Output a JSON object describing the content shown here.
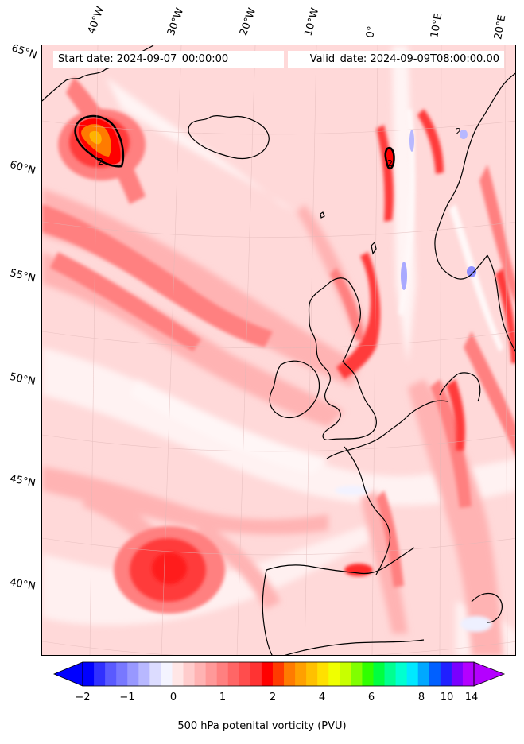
{
  "header": {
    "start_date": "Start date: 2024-09-07_00:00:00",
    "valid_date": "Valid_date: 2024-09-09T08:00:00.00"
  },
  "map": {
    "variable": "500 hPa potential vorticity",
    "longitude_labels": [
      "40°W",
      "30°W",
      "20°W",
      "10°W",
      "0°",
      "10°E",
      "20°E"
    ],
    "latitude_labels": [
      "65°N",
      "60°N",
      "55°N",
      "50°N",
      "45°N",
      "40°N"
    ],
    "contour_labels": [
      "2",
      "2",
      "2"
    ],
    "colors": {
      "background": "#ffd9d9",
      "light_pink": "#ffb3b3",
      "medium_red": "#ff8080",
      "strong_red": "#ff3b3b",
      "deep_red": "#ff0000",
      "orange": "#ff7b00",
      "yellow_orange": "#ffb300",
      "white_band": "#fff2f2",
      "blue_negative": "#a9a9ff",
      "coastline": "#000000"
    }
  },
  "colorbar": {
    "label": "500 hPa potenital vorticity (PVU)",
    "tick_labels": [
      "−2",
      "−1",
      "0",
      "1",
      "2",
      "4",
      "6",
      "8",
      "10",
      "14"
    ],
    "colors": [
      "#0000ff",
      "#3030ff",
      "#5a5aff",
      "#7878ff",
      "#9898ff",
      "#b8b8ff",
      "#dcdcff",
      "#f4f4ff",
      "#ffe6e6",
      "#ffcccc",
      "#ffb3b3",
      "#ff9999",
      "#ff8080",
      "#ff6666",
      "#ff4d4d",
      "#ff3333",
      "#ff0000",
      "#ff3b00",
      "#ff7b00",
      "#ffa000",
      "#ffc000",
      "#ffe000",
      "#f0ff00",
      "#c8ff00",
      "#80ff00",
      "#30ff00",
      "#00ff40",
      "#00ff90",
      "#00ffd0",
      "#00e8ff",
      "#00a8ff",
      "#0060ff",
      "#2020ff",
      "#7a00ff",
      "#b400ff"
    ]
  }
}
